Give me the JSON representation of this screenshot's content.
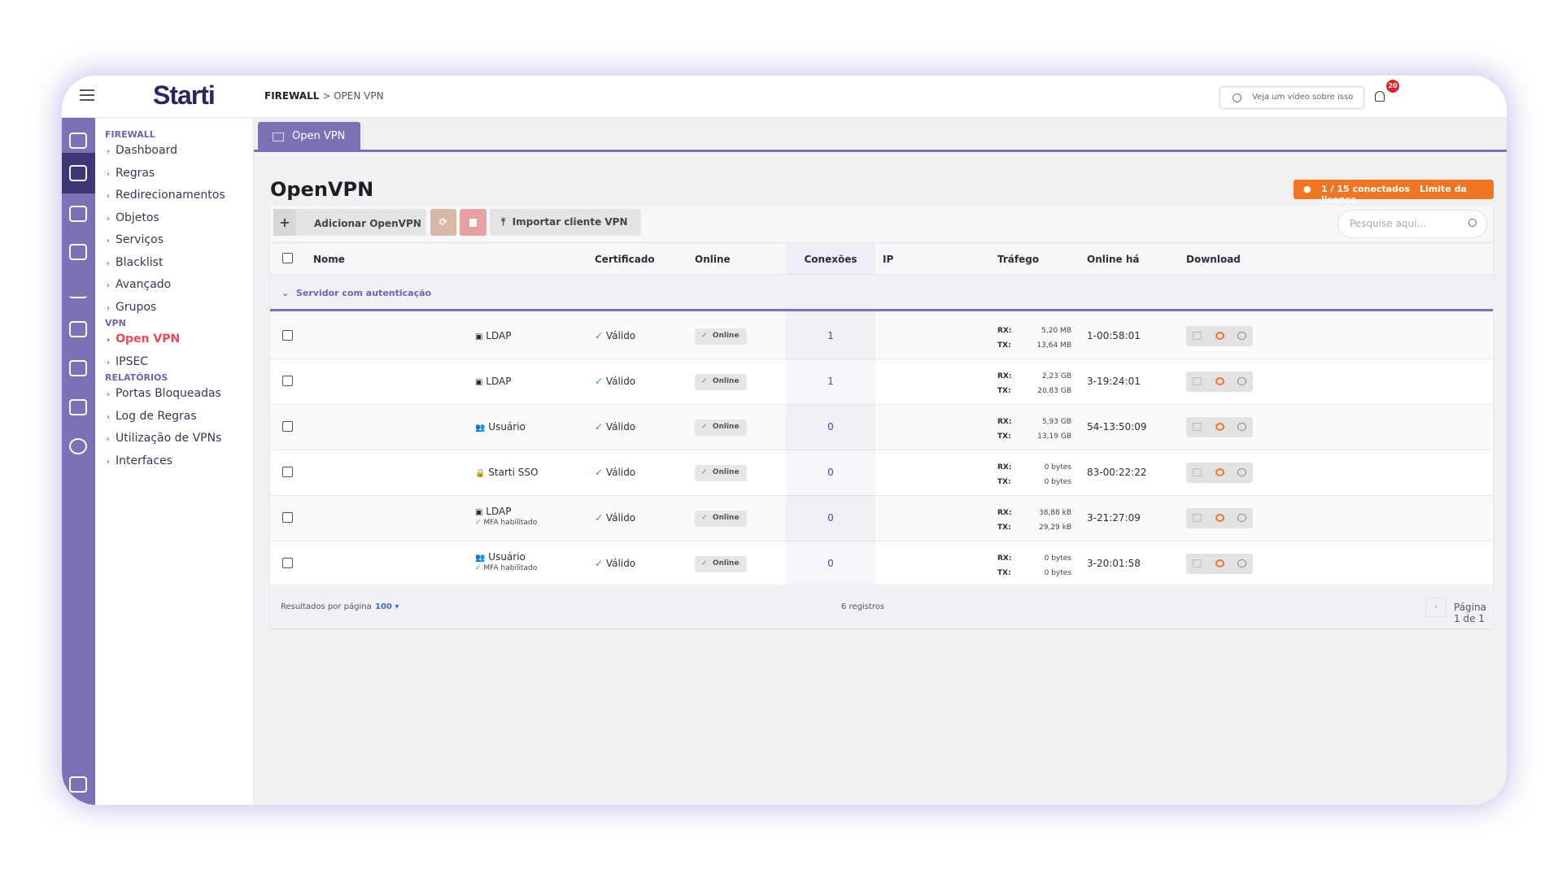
{
  "header": {
    "logo": "Starti",
    "breadcrumb_root": "FIREWALL",
    "breadcrumb_sep": " > ",
    "breadcrumb_current": "OPEN VPN",
    "video_button": "Veja um vídeo sobre isso",
    "notifications": "20"
  },
  "sidebar": {
    "sections": [
      {
        "title": "FIREWALL",
        "items": [
          "Dashboard",
          "Regras",
          "Redirecionamentos",
          "Objetos",
          "Serviços",
          "Blacklist",
          "Avançado",
          "Grupos"
        ]
      },
      {
        "title": "VPN",
        "items": [
          "Open VPN",
          "IPSEC"
        ]
      },
      {
        "title": "RELATÓRIOS",
        "items": [
          "Portas Bloqueadas",
          "Log de Regras",
          "Utilização de VPNs",
          "Interfaces"
        ]
      }
    ],
    "active_item": "Open VPN"
  },
  "tab": {
    "label": "Open VPN"
  },
  "page": {
    "title": "OpenVPN",
    "license_count": "1 / 15 conectados",
    "license_label": "Limite da licença"
  },
  "toolbar": {
    "add": "Adicionar OpenVPN",
    "import": "Importar cliente VPN",
    "search_placeholder": "Pesquise aqui..."
  },
  "table": {
    "columns": [
      "Nome",
      "Certificado",
      "Online",
      "Conexões",
      "IP",
      "Tráfego",
      "Online há",
      "Download"
    ],
    "group": "Servidor com autenticação",
    "rows": [
      {
        "auth": "LDAP",
        "auth_icon": "ad-icon",
        "mfa": "",
        "cert": "Válido",
        "online": "Online",
        "conn": "1",
        "ip": "",
        "rx": "5,20 MB",
        "tx": "13,64 MB",
        "since": "1-00:58:01"
      },
      {
        "auth": "LDAP",
        "auth_icon": "ad-icon",
        "mfa": "",
        "cert": "Válido",
        "online": "Online",
        "conn": "1",
        "ip": "",
        "rx": "2,23 GB",
        "tx": "20,83 GB",
        "since": "3-19:24:01"
      },
      {
        "auth": "Usuário",
        "auth_icon": "users-icon",
        "mfa": "",
        "cert": "Válido",
        "online": "Online",
        "conn": "0",
        "ip": "",
        "rx": "5,93 GB",
        "tx": "13,19 GB",
        "since": "54-13:50:09"
      },
      {
        "auth": "Starti SSO",
        "auth_icon": "lock-icon",
        "mfa": "",
        "cert": "Válido",
        "online": "Online",
        "conn": "0",
        "ip": "",
        "rx": "0 bytes",
        "tx": "0 bytes",
        "since": "83-00:22:22"
      },
      {
        "auth": "LDAP",
        "auth_icon": "ad-icon",
        "mfa": "MFA habilitado",
        "cert": "Válido",
        "online": "Online",
        "conn": "0",
        "ip": "",
        "rx": "38,88 kB",
        "tx": "29,29 kB",
        "since": "3-21:27:09"
      },
      {
        "auth": "Usuário",
        "auth_icon": "users-icon",
        "mfa": "MFA habilitado",
        "cert": "Válido",
        "online": "Online",
        "conn": "0",
        "ip": "",
        "rx": "0 bytes",
        "tx": "0 bytes",
        "since": "3-20:01:58"
      }
    ],
    "rx_label": "RX:",
    "tx_label": "TX:"
  },
  "footer": {
    "per_page_label": "Resultados por página",
    "per_page": "100",
    "records": "6 registros",
    "page": "Página 1 de 1"
  },
  "colors": {
    "accent": "#7b72b5",
    "active": "#ee4a55",
    "license": "#f07623",
    "ok": "#2bb24c"
  }
}
